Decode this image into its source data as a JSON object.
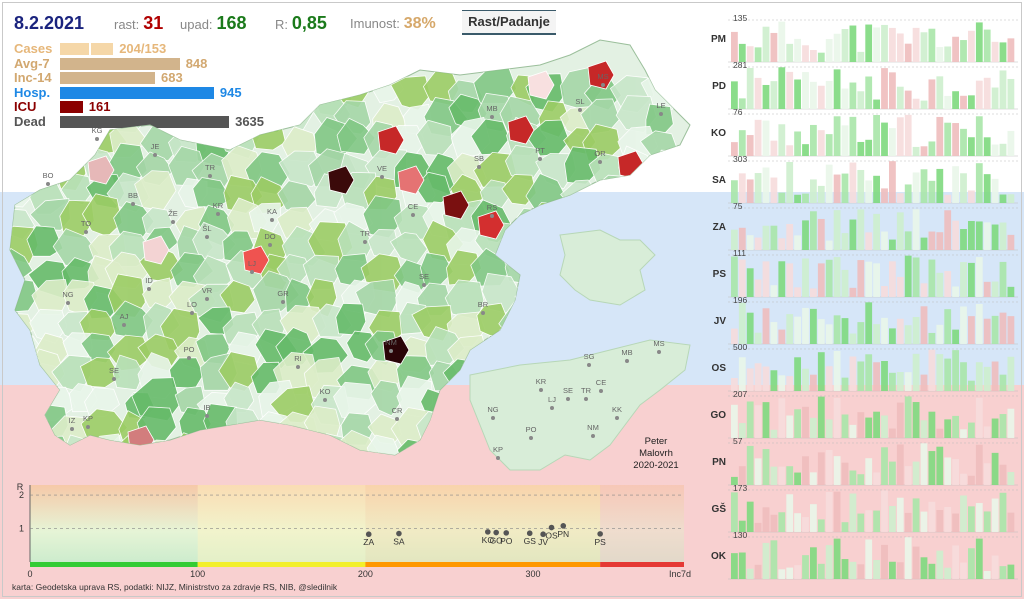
{
  "header": {
    "date": "8.2.2021",
    "rast_label": "rast:",
    "rast_value": "31",
    "upad_label": "upad:",
    "upad_value": "168",
    "r_label": "R:",
    "r_value": "0,85",
    "imunost_label": "Imunost:",
    "imunost_value": "38%",
    "button_label": "Rast/Padanje"
  },
  "stats": [
    {
      "label": "Cases",
      "value": "204/153",
      "color": "#f5d7a8",
      "fraction": 0.28
    },
    {
      "label": "Avg-7",
      "value": "848",
      "color": "#d2b48c",
      "fraction": 0.63
    },
    {
      "label": "Inc-14",
      "value": "683",
      "color": "#d2b48c",
      "fraction": 0.5
    },
    {
      "label": "Hosp.",
      "value": "945",
      "color": "#1e88e5",
      "fraction": 0.81
    },
    {
      "label": "ICU",
      "value": "161",
      "color": "#8b0000",
      "fraction": 0.12
    },
    {
      "label": "Dead",
      "value": "3635",
      "color": "#555555",
      "fraction": 0.89
    }
  ],
  "stat_label_colors": [
    "#e6b77a",
    "#d2a870",
    "#d2a870",
    "#1e88e5",
    "#8b0000",
    "#555555"
  ],
  "region_labels": [
    "KG",
    "JE",
    "BO",
    "BB",
    "TR",
    "ŽE",
    "KR",
    "ŠL",
    "KA",
    "DO",
    "LJ",
    "TO",
    "ID",
    "NG",
    "AJ",
    "LO",
    "VR",
    "GR",
    "PO",
    "SE",
    "RI",
    "IZ",
    "KP",
    "IB",
    "KO",
    "NM",
    "CR",
    "MB",
    "SB",
    "VE",
    "RS",
    "PT",
    "OR",
    "SL",
    "MS",
    "LE",
    "CE",
    "TR",
    "SE",
    "BR"
  ],
  "inset_labels": [
    "KR",
    "LJ",
    "NG",
    "PO",
    "KP",
    "CE",
    "TR",
    "SE",
    "NM",
    "KK",
    "MB",
    "MS",
    "SG"
  ],
  "credit": [
    "Peter",
    "Malovrh",
    "2020-2021"
  ],
  "bottom_chart": {
    "y_axis_label": "R",
    "y_ticks": [
      "2",
      "1"
    ],
    "x_ticks": [
      "0",
      "100",
      "200",
      "300",
      "Inc7d"
    ],
    "points": [
      {
        "label": "ZA",
        "x": 202,
        "r": 0.83
      },
      {
        "label": "SA",
        "x": 220,
        "r": 0.85
      },
      {
        "label": "KO",
        "x": 273,
        "r": 0.9
      },
      {
        "label": "GO",
        "x": 278,
        "r": 0.88
      },
      {
        "label": "PO",
        "x": 284,
        "r": 0.87
      },
      {
        "label": "GS",
        "x": 298,
        "r": 0.86
      },
      {
        "label": "JV",
        "x": 306,
        "r": 0.83
      },
      {
        "label": "OS",
        "x": 311,
        "r": 1.03
      },
      {
        "label": "PN",
        "x": 318,
        "r": 1.08
      },
      {
        "label": "PS",
        "x": 340,
        "r": 0.84
      }
    ]
  },
  "footer": "karta: Geodetska uprava RS,  podatki: NIJZ, Ministrstvo za zdravje RS, NIB, @sledilnik",
  "regions": [
    {
      "code": "PM",
      "max": "135"
    },
    {
      "code": "PD",
      "max": "281"
    },
    {
      "code": "KO",
      "max": "76"
    },
    {
      "code": "SA",
      "max": "303"
    },
    {
      "code": "ZA",
      "max": "75"
    },
    {
      "code": "PS",
      "max": "111"
    },
    {
      "code": "JV",
      "max": "196"
    },
    {
      "code": "OS",
      "max": "500"
    },
    {
      "code": "GO",
      "max": "207"
    },
    {
      "code": "PN",
      "max": "57"
    },
    {
      "code": "GŠ",
      "max": "173"
    },
    {
      "code": "OK",
      "max": "130"
    }
  ]
}
